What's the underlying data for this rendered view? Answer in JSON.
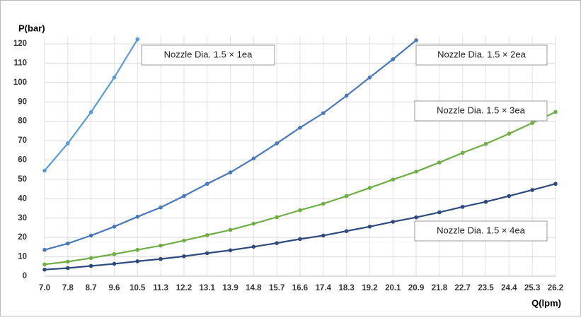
{
  "chart_data": {
    "type": "line",
    "y_label": "P(bar)",
    "x_label": "Q(lpm)",
    "categories": [
      "7.0",
      "7.8",
      "8.7",
      "9.6",
      "10.5",
      "11.3",
      "12.2",
      "13.1",
      "13.9",
      "14.8",
      "15.7",
      "16.6",
      "17.4",
      "18.3",
      "19.2",
      "20.1",
      "20.9",
      "21.8",
      "22.7",
      "23.5",
      "24.4",
      "25.3",
      "26.2"
    ],
    "series": [
      {
        "name": "Nozzle Dia. 1.5 × 1ea",
        "color": "#5b9bd5",
        "values": [
          54.5,
          68.6,
          84.7,
          102.6,
          122.3,
          null,
          null,
          null,
          null,
          null,
          null,
          null,
          null,
          null,
          null,
          null,
          null,
          null,
          null,
          null,
          null,
          null,
          null
        ]
      },
      {
        "name": "Nozzle Dia. 1.5 × 2ea",
        "color": "#4a78b8",
        "values": [
          13.6,
          16.9,
          21.0,
          25.6,
          30.7,
          35.5,
          41.4,
          47.7,
          53.6,
          60.8,
          68.6,
          76.7,
          84.2,
          93.2,
          102.6,
          112.0,
          121.8,
          null,
          null,
          null,
          null,
          null,
          null
        ]
      },
      {
        "name": "Nozzle Dia. 1.5 × 3ea",
        "color": "#70ad47",
        "values": [
          6.1,
          7.5,
          9.4,
          11.4,
          13.6,
          15.8,
          18.4,
          21.2,
          23.9,
          27.1,
          30.5,
          34.1,
          37.4,
          41.4,
          45.6,
          49.9,
          54.0,
          58.7,
          63.7,
          68.3,
          73.6,
          79.1,
          84.8
        ]
      },
      {
        "name": "Nozzle Dia. 1.5 × 4ea",
        "color": "#2e4a7a",
        "values": [
          3.4,
          4.2,
          5.3,
          6.4,
          7.7,
          8.9,
          10.3,
          11.9,
          13.4,
          15.2,
          17.1,
          19.2,
          21.0,
          23.3,
          25.6,
          28.1,
          30.4,
          33.0,
          35.8,
          38.4,
          41.4,
          44.5,
          47.7
        ]
      }
    ],
    "ylim": [
      0,
      124
    ],
    "yticks": [
      0,
      10,
      20,
      30,
      40,
      50,
      60,
      70,
      80,
      90,
      100,
      110,
      120
    ],
    "grid": true
  }
}
